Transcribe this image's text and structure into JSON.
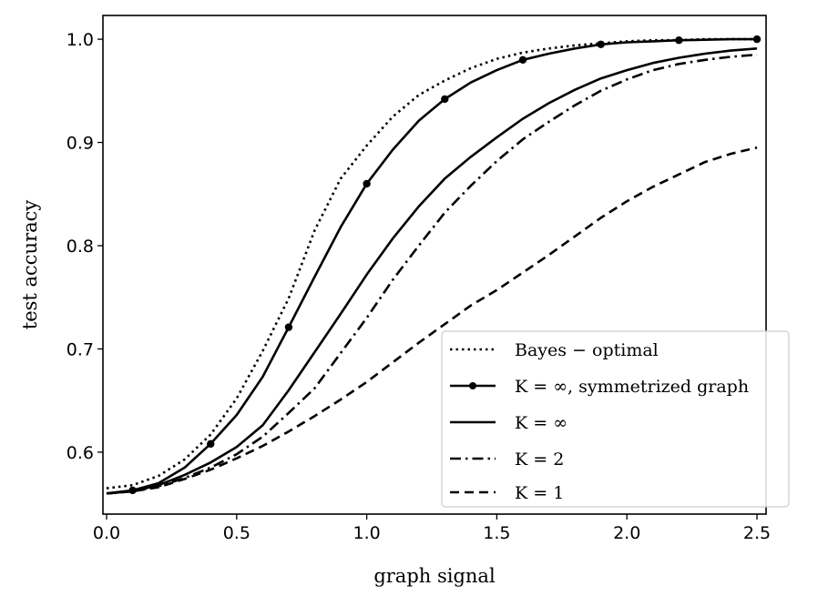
{
  "chart_data": {
    "type": "line",
    "title": "",
    "xlabel": "graph signal",
    "ylabel": "test accuracy",
    "xlim": [
      -0.014,
      2.535
    ],
    "ylim": [
      0.54,
      1.023
    ],
    "xticks": [
      0.0,
      0.5,
      1.0,
      1.5,
      2.0,
      2.5
    ],
    "xtick_labels": [
      "0.0",
      "0.5",
      "1.0",
      "1.5",
      "2.0",
      "2.5"
    ],
    "yticks": [
      0.6,
      0.7,
      0.8,
      0.9,
      1.0
    ],
    "ytick_labels": [
      "0.6",
      "0.7",
      "0.8",
      "0.9",
      "1.0"
    ],
    "grid": false,
    "legend_position": "bottom-right",
    "x": [
      0.0,
      0.1,
      0.2,
      0.3,
      0.4,
      0.5,
      0.6,
      0.7,
      0.8,
      0.9,
      1.0,
      1.1,
      1.2,
      1.3,
      1.4,
      1.5,
      1.6,
      1.7,
      1.8,
      1.9,
      2.0,
      2.1,
      2.2,
      2.3,
      2.4,
      2.5
    ],
    "series": [
      {
        "name": "Bayes − optimal",
        "style": "dotted",
        "markers": false,
        "values": [
          0.565,
          0.568,
          0.577,
          0.593,
          0.617,
          0.652,
          0.698,
          0.749,
          0.815,
          0.865,
          0.897,
          0.925,
          0.946,
          0.96,
          0.972,
          0.981,
          0.987,
          0.991,
          0.994,
          0.996,
          0.998,
          0.999,
          0.999,
          1.0,
          1.0,
          1.0
        ]
      },
      {
        "name": "K = ∞, symmetrized graph",
        "style": "solid",
        "markers": true,
        "marker_x": [
          0.1,
          0.4,
          0.7,
          1.0,
          1.3,
          1.6,
          1.9,
          2.2,
          2.5
        ],
        "values": [
          0.56,
          0.563,
          0.57,
          0.585,
          0.608,
          0.636,
          0.673,
          0.721,
          0.77,
          0.818,
          0.86,
          0.893,
          0.921,
          0.942,
          0.958,
          0.97,
          0.98,
          0.986,
          0.991,
          0.995,
          0.997,
          0.998,
          0.999,
          0.9995,
          1.0,
          1.0
        ]
      },
      {
        "name": "K = ∞",
        "style": "solid",
        "markers": false,
        "values": [
          0.56,
          0.562,
          0.568,
          0.578,
          0.59,
          0.605,
          0.626,
          0.66,
          0.697,
          0.734,
          0.772,
          0.807,
          0.838,
          0.865,
          0.886,
          0.905,
          0.923,
          0.938,
          0.951,
          0.962,
          0.97,
          0.977,
          0.982,
          0.986,
          0.989,
          0.991
        ]
      },
      {
        "name": "K = 2",
        "style": "dashdot",
        "markers": false,
        "values": [
          0.56,
          0.562,
          0.567,
          0.575,
          0.585,
          0.598,
          0.615,
          0.638,
          0.662,
          0.696,
          0.73,
          0.767,
          0.8,
          0.832,
          0.858,
          0.882,
          0.903,
          0.92,
          0.936,
          0.95,
          0.961,
          0.97,
          0.976,
          0.98,
          0.983,
          0.985
        ]
      },
      {
        "name": "K = 1",
        "style": "dashed",
        "markers": false,
        "values": [
          0.56,
          0.562,
          0.566,
          0.574,
          0.583,
          0.594,
          0.606,
          0.62,
          0.635,
          0.651,
          0.668,
          0.687,
          0.706,
          0.724,
          0.742,
          0.757,
          0.774,
          0.791,
          0.809,
          0.827,
          0.843,
          0.857,
          0.869,
          0.881,
          0.889,
          0.895
        ]
      }
    ]
  }
}
